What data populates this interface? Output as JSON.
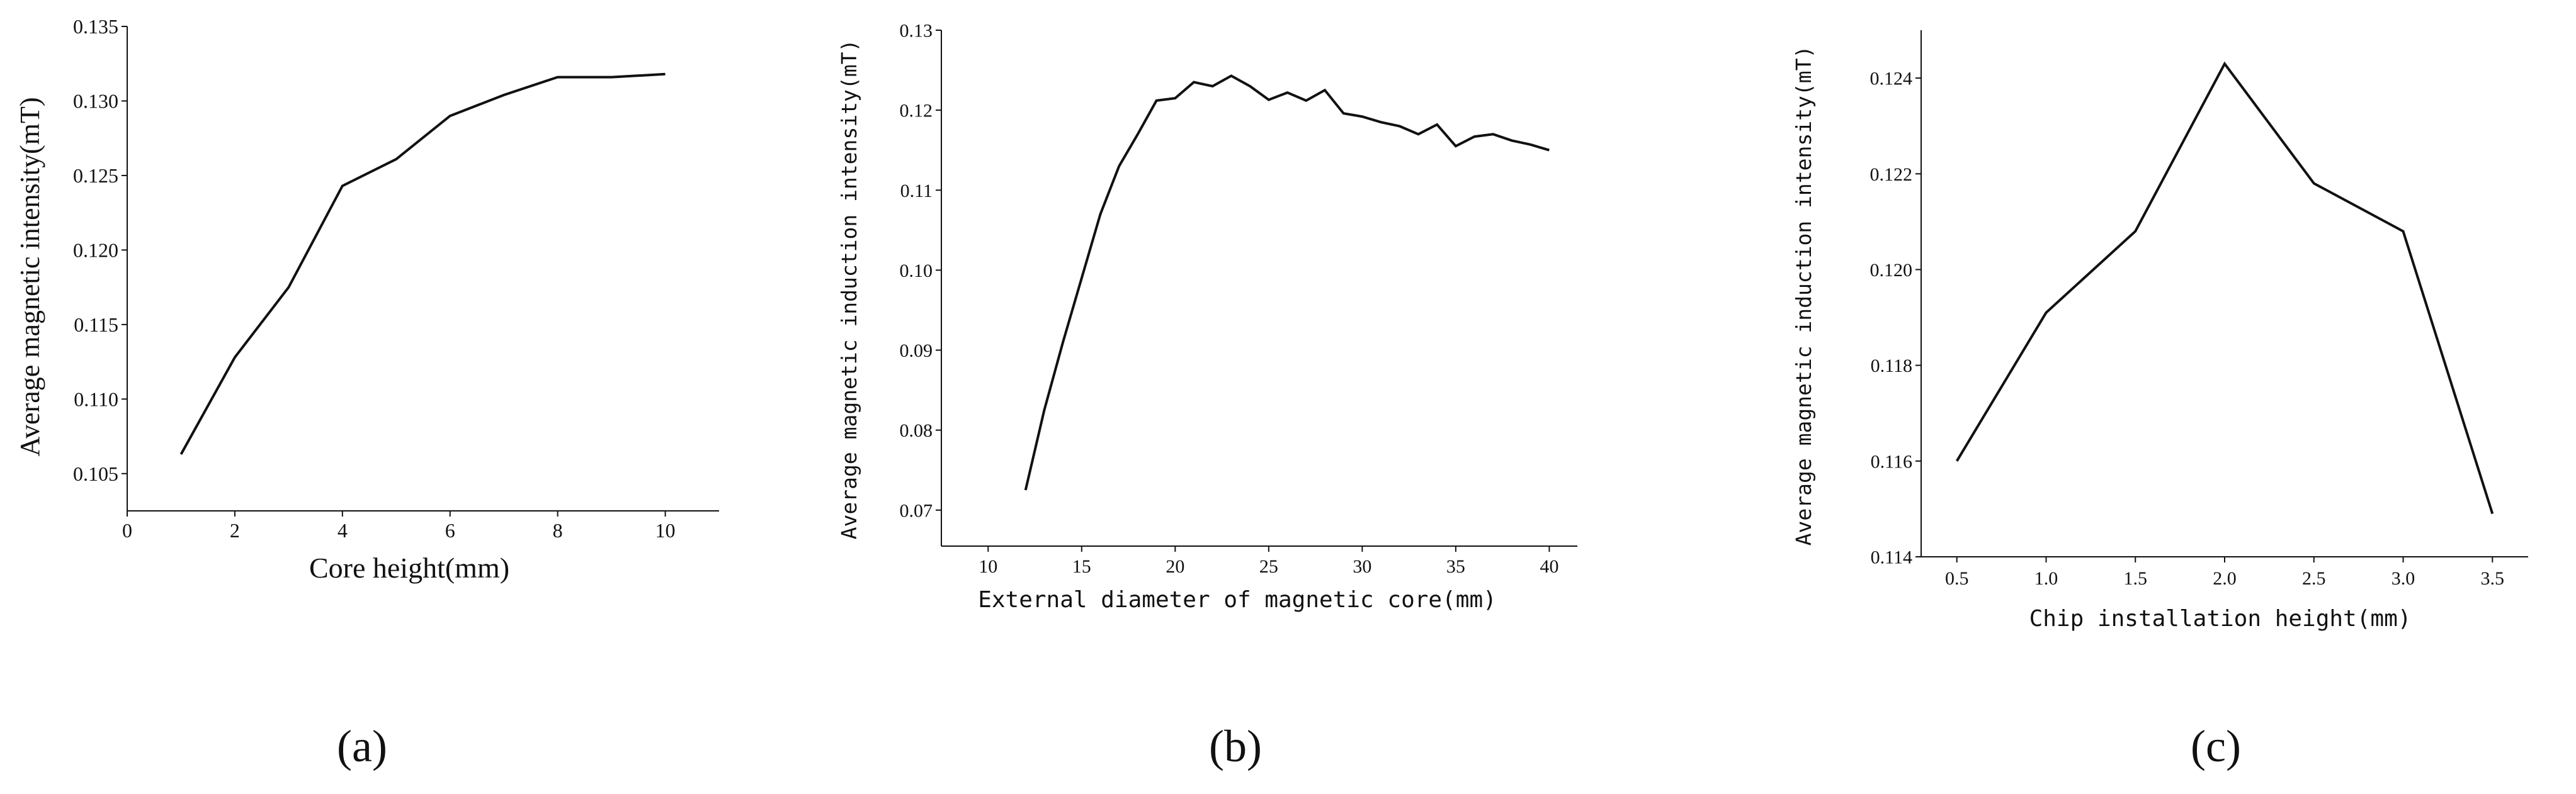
{
  "chart_data": [
    {
      "type": "line",
      "title": "",
      "xlabel": "Core height(mm)",
      "ylabel": "Average magnetic intensity(mT)",
      "xlim": [
        0,
        11
      ],
      "ylim": [
        0.1025,
        0.135
      ],
      "xticks": [
        "0",
        "2",
        "4",
        "6",
        "8",
        "10"
      ],
      "yticks": [
        "0.105",
        "0.110",
        "0.115",
        "0.120",
        "0.125",
        "0.130",
        "0.135"
      ],
      "grid": false,
      "x": [
        1,
        2,
        3,
        4,
        5,
        6,
        7,
        8,
        9,
        10
      ],
      "y": [
        0.1063,
        0.1128,
        0.1175,
        0.1243,
        0.1261,
        0.129,
        0.1304,
        0.1316,
        0.1316,
        0.1318
      ],
      "caption": "(a)"
    },
    {
      "type": "line",
      "title": "",
      "xlabel": "External diameter of magnetic core(mm)",
      "ylabel": "Average magnetic induction intensity(mT)",
      "xlim": [
        7.5,
        41.5
      ],
      "ylim": [
        0.0655,
        0.13
      ],
      "xticks": [
        "10",
        "15",
        "20",
        "25",
        "30",
        "35",
        "40"
      ],
      "yticks": [
        "0.07",
        "0.08",
        "0.09",
        "0.10",
        "0.11",
        "0.12",
        "0.13"
      ],
      "grid": false,
      "x": [
        12,
        13,
        14,
        15,
        16,
        17,
        18,
        19,
        20,
        21,
        22,
        23,
        24,
        25,
        26,
        27,
        28,
        29,
        30,
        31,
        32,
        33,
        34,
        35,
        36,
        37,
        38,
        39,
        40
      ],
      "y": [
        0.0725,
        0.0825,
        0.091,
        0.099,
        0.107,
        0.113,
        0.117,
        0.1212,
        0.1215,
        0.1235,
        0.123,
        0.1243,
        0.123,
        0.1213,
        0.1222,
        0.1212,
        0.1225,
        0.1196,
        0.1192,
        0.1185,
        0.118,
        0.117,
        0.1182,
        0.1155,
        0.1167,
        0.117,
        0.1162,
        0.1157,
        0.115
      ],
      "caption": "(b)"
    },
    {
      "type": "line",
      "title": "",
      "xlabel": "Chip installation height(mm)",
      "ylabel": "Average magnetic induction intensity(mT)",
      "xlim": [
        0.3,
        3.7
      ],
      "ylim": [
        0.114,
        0.125
      ],
      "xticks": [
        "0.5",
        "1.0",
        "1.5",
        "2.0",
        "2.5",
        "3.0",
        "3.5"
      ],
      "yticks": [
        "0.114",
        "0.116",
        "0.118",
        "0.120",
        "0.122",
        "0.124"
      ],
      "grid": false,
      "x": [
        0.5,
        1.0,
        1.5,
        2.0,
        2.5,
        3.0,
        3.5
      ],
      "y": [
        0.116,
        0.1191,
        0.1208,
        0.1243,
        0.1218,
        0.1208,
        0.1149
      ],
      "caption": "(c)"
    }
  ]
}
